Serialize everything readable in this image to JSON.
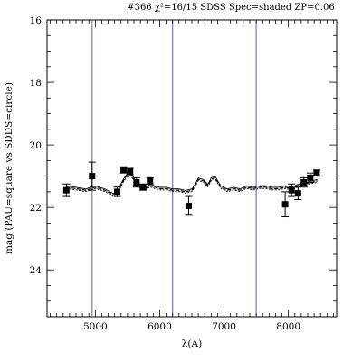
{
  "chart_data": {
    "type": "scatter",
    "title": "#366 χ²=16/15 SDSS Spec=shaded ZP=0.06",
    "xlabel": "λ(A)",
    "ylabel": "mag (PAU=square vs SDDS=circle)",
    "xlim": [
      4250,
      8750
    ],
    "ylim": [
      25.5,
      16
    ],
    "y_inverted": true,
    "grid": false,
    "xticks": [
      5000,
      6000,
      7000,
      8000
    ],
    "xtick_labels": [
      "5000",
      "6000",
      "7000",
      "8000"
    ],
    "yticks": [
      16,
      18,
      20,
      22,
      24
    ],
    "ytick_labels": [
      "16",
      "18",
      "20",
      "22",
      "24"
    ],
    "vertical_lines": [
      {
        "x": 4950,
        "color": "#7777bb"
      },
      {
        "x": 6200,
        "color": "#7777bb"
      },
      {
        "x": 7500,
        "color": "#7777bb"
      }
    ],
    "series": [
      {
        "marker": "square",
        "color": "#000000",
        "points": [
          {
            "x": 4550,
            "y": 21.45,
            "err": 0.2
          },
          {
            "x": 4950,
            "y": 21.0,
            "err": 0.45
          },
          {
            "x": 5340,
            "y": 21.5,
            "err": 0.15
          },
          {
            "x": 5440,
            "y": 20.8,
            "err": 0.1
          },
          {
            "x": 5540,
            "y": 20.85,
            "err": 0.1
          },
          {
            "x": 5640,
            "y": 21.2,
            "err": 0.15
          },
          {
            "x": 5740,
            "y": 21.35,
            "err": 0.1
          },
          {
            "x": 5850,
            "y": 21.15,
            "err": 0.1
          },
          {
            "x": 6450,
            "y": 21.95,
            "err": 0.3
          },
          {
            "x": 7950,
            "y": 21.9,
            "err": 0.4
          },
          {
            "x": 8050,
            "y": 21.45,
            "err": 0.2
          },
          {
            "x": 8150,
            "y": 21.55,
            "err": 0.2
          },
          {
            "x": 8240,
            "y": 21.2,
            "err": 0.15
          },
          {
            "x": 8340,
            "y": 21.05,
            "err": 0.15
          },
          {
            "x": 8440,
            "y": 20.9,
            "err": 0.1
          }
        ]
      }
    ],
    "spectrum": {
      "color": "#000000",
      "x": [
        4550,
        4700,
        4850,
        5000,
        5150,
        5280,
        5350,
        5420,
        5480,
        5550,
        5620,
        5700,
        5780,
        5850,
        5920,
        6000,
        6100,
        6200,
        6300,
        6400,
        6500,
        6550,
        6600,
        6680,
        6750,
        6800,
        6860,
        6950,
        7050,
        7150,
        7250,
        7350,
        7450,
        7550,
        7650,
        7750,
        7850,
        7950,
        8050,
        8150,
        8250,
        8350,
        8450
      ],
      "y": [
        21.35,
        21.4,
        21.45,
        21.35,
        21.45,
        21.6,
        21.5,
        21.2,
        21.0,
        20.95,
        21.15,
        21.35,
        21.4,
        21.3,
        21.35,
        21.4,
        21.4,
        21.45,
        21.45,
        21.5,
        21.45,
        21.3,
        21.1,
        21.15,
        21.3,
        21.1,
        21.05,
        21.35,
        21.45,
        21.4,
        21.45,
        21.35,
        21.4,
        21.35,
        21.35,
        21.4,
        21.4,
        21.35,
        21.4,
        21.3,
        21.25,
        21.2,
        21.15
      ]
    }
  }
}
